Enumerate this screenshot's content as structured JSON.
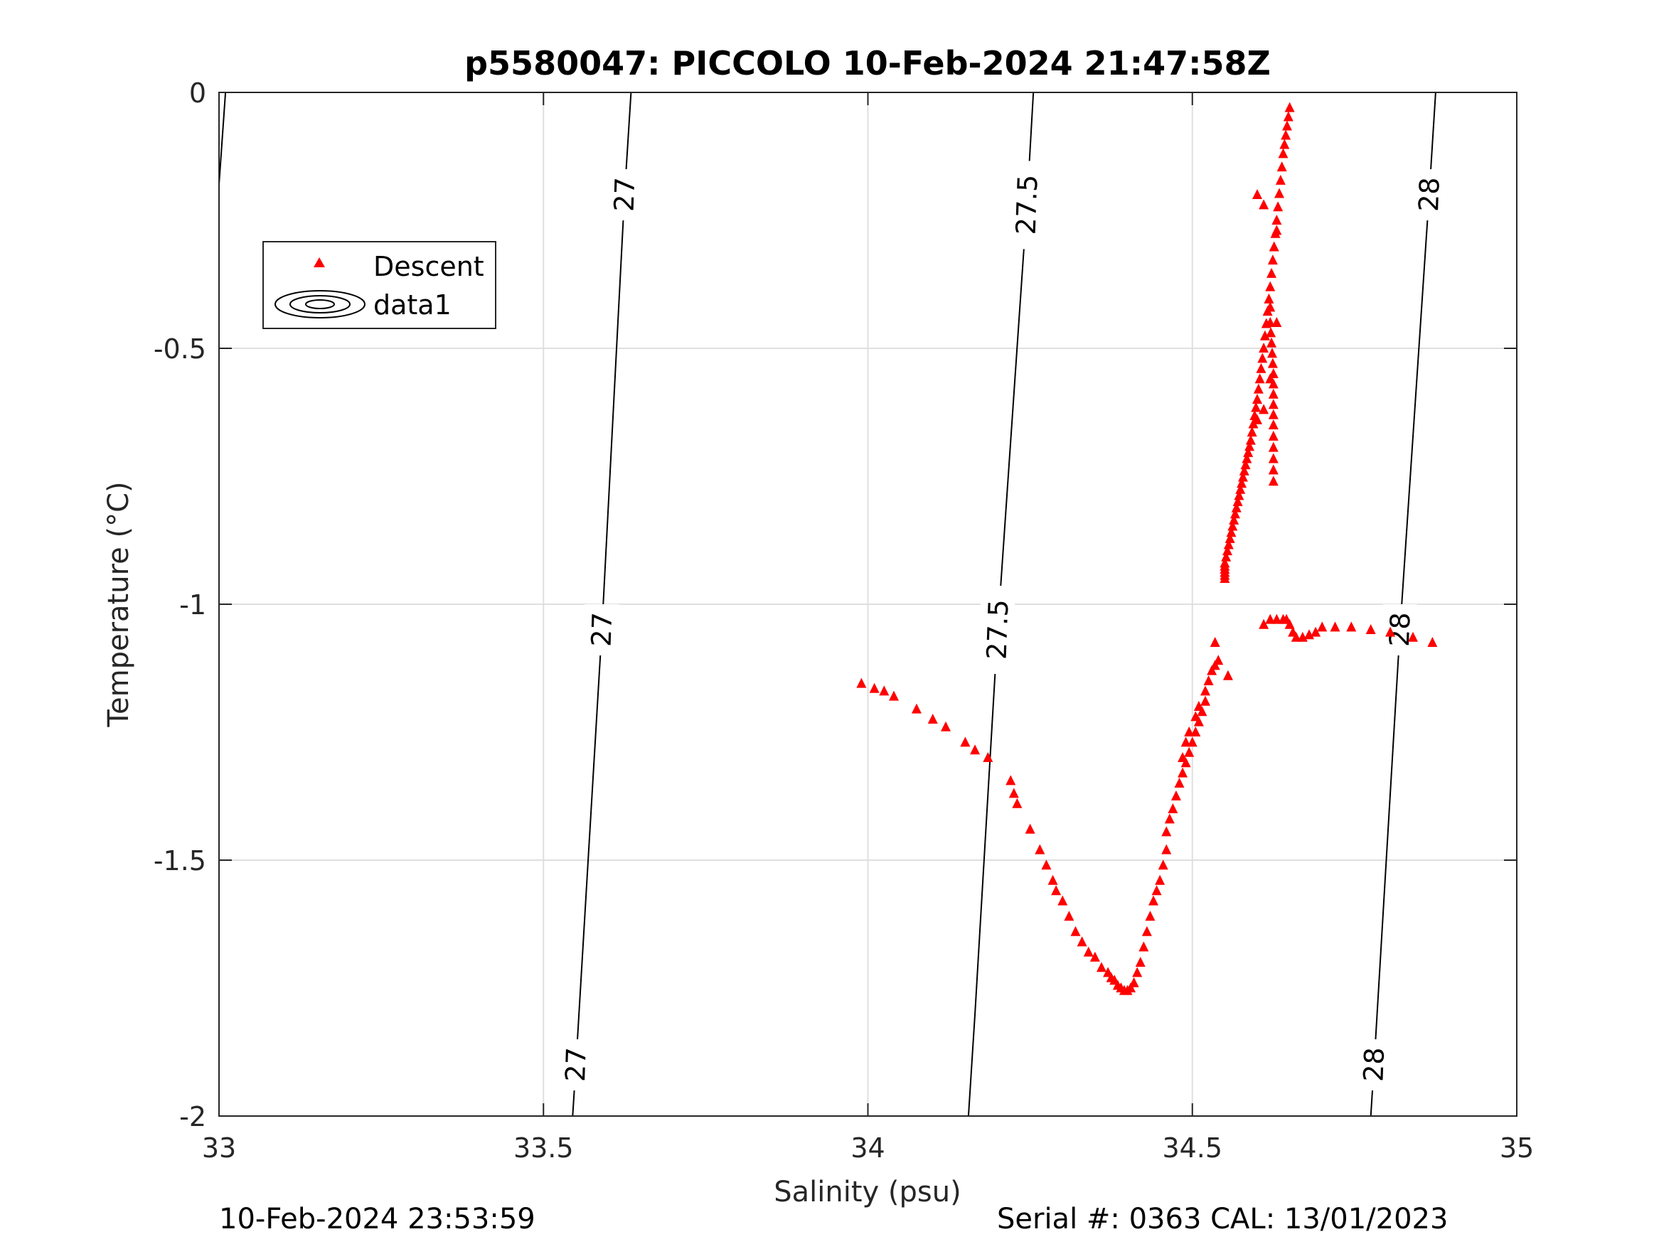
{
  "chart_data": {
    "type": "scatter",
    "title": "p5580047: PICCOLO 10-Feb-2024 21:47:58Z",
    "xlabel": "Salinity (psu)",
    "ylabel": "Temperature (°C)",
    "xlim": [
      33,
      35
    ],
    "ylim": [
      -2,
      0
    ],
    "xticks": [
      33,
      33.5,
      34,
      34.5,
      35
    ],
    "xtick_labels": [
      "33",
      "33.5",
      "34",
      "34.5",
      "35"
    ],
    "yticks": [
      0,
      -0.5,
      -1,
      -1.5,
      -2
    ],
    "ytick_labels": [
      "0",
      "-0.5",
      "-1",
      "-1.5",
      "-2"
    ],
    "grid": true,
    "legend": {
      "placement": "upper-left",
      "entries": [
        "Descent",
        "data1"
      ]
    },
    "colors": {
      "descent": "#ff0000",
      "contour": "#000000",
      "grid": "#dfdfdf"
    },
    "contours": [
      {
        "level": "27",
        "points": [
          [
            33.545,
            -2
          ],
          [
            33.55,
            -1.9
          ],
          [
            33.59,
            -1.05
          ],
          [
            33.625,
            -0.2
          ],
          [
            33.635,
            0
          ]
        ],
        "labels_at_T": [
          -1.9,
          -1.05,
          -0.2
        ]
      },
      {
        "level": "27.5",
        "points": [
          [
            34.155,
            -2
          ],
          [
            34.165,
            -1.8
          ],
          [
            34.2,
            -1.05
          ],
          [
            34.245,
            -0.22
          ],
          [
            34.255,
            0
          ]
        ],
        "labels_at_T": [
          -1.05,
          -0.22
        ]
      },
      {
        "level": "28",
        "points": [
          [
            34.775,
            -2
          ],
          [
            34.78,
            -1.9
          ],
          [
            34.82,
            -1.05
          ],
          [
            34.865,
            -0.2
          ],
          [
            34.875,
            0
          ]
        ],
        "labels_at_T": [
          -1.9,
          -1.05,
          -0.2
        ]
      },
      {
        "level": "",
        "points": [
          [
            33.0,
            -0.18
          ],
          [
            33.01,
            0
          ]
        ],
        "labels_at_T": []
      }
    ],
    "series": [
      {
        "name": "Descent",
        "marker": "triangle",
        "path": [
          [
            34.65,
            -0.03
          ],
          [
            34.64,
            -0.12
          ],
          [
            34.63,
            -0.25
          ],
          [
            34.62,
            -0.38
          ],
          [
            34.61,
            -0.5
          ],
          [
            34.6,
            -0.6
          ],
          [
            34.59,
            -0.68
          ],
          [
            34.58,
            -0.74
          ],
          [
            34.57,
            -0.8
          ],
          [
            34.56,
            -0.86
          ],
          [
            34.55,
            -0.92
          ],
          [
            34.55,
            -0.95
          ]
        ],
        "extra_path": [
          [
            34.62,
            -0.45
          ],
          [
            34.625,
            -0.55
          ],
          [
            34.625,
            -0.65
          ],
          [
            34.625,
            -0.76
          ]
        ],
        "points": [
          [
            34.6,
            -0.2
          ],
          [
            34.61,
            -0.22
          ],
          [
            34.63,
            -0.27
          ],
          [
            34.62,
            -0.42
          ],
          [
            34.63,
            -0.45
          ],
          [
            34.61,
            -0.62
          ],
          [
            34.62,
            -0.56
          ],
          [
            34.6,
            -0.64
          ],
          [
            34.61,
            -1.04
          ],
          [
            34.62,
            -1.03
          ],
          [
            34.63,
            -1.03
          ],
          [
            34.64,
            -1.03
          ],
          [
            34.645,
            -1.03
          ],
          [
            34.65,
            -1.04
          ],
          [
            34.655,
            -1.055
          ],
          [
            34.66,
            -1.065
          ],
          [
            34.67,
            -1.065
          ],
          [
            34.68,
            -1.06
          ],
          [
            34.69,
            -1.055
          ],
          [
            34.7,
            -1.045
          ],
          [
            34.72,
            -1.045
          ],
          [
            34.745,
            -1.045
          ],
          [
            34.775,
            -1.05
          ],
          [
            34.805,
            -1.055
          ],
          [
            34.84,
            -1.065
          ],
          [
            34.87,
            -1.075
          ],
          [
            33.99,
            -1.155
          ],
          [
            34.01,
            -1.165
          ],
          [
            34.025,
            -1.17
          ],
          [
            34.04,
            -1.18
          ],
          [
            34.075,
            -1.205
          ],
          [
            34.1,
            -1.225
          ],
          [
            34.12,
            -1.24
          ],
          [
            34.15,
            -1.27
          ],
          [
            34.165,
            -1.285
          ],
          [
            34.185,
            -1.3
          ],
          [
            34.22,
            -1.345
          ],
          [
            34.225,
            -1.37
          ],
          [
            34.23,
            -1.39
          ],
          [
            34.25,
            -1.44
          ],
          [
            34.265,
            -1.48
          ],
          [
            34.275,
            -1.51
          ],
          [
            34.285,
            -1.54
          ],
          [
            34.29,
            -1.56
          ],
          [
            34.3,
            -1.58
          ],
          [
            34.31,
            -1.61
          ],
          [
            34.32,
            -1.64
          ],
          [
            34.33,
            -1.66
          ],
          [
            34.34,
            -1.68
          ],
          [
            34.35,
            -1.69
          ],
          [
            34.36,
            -1.71
          ],
          [
            34.37,
            -1.72
          ],
          [
            34.375,
            -1.73
          ],
          [
            34.38,
            -1.735
          ],
          [
            34.385,
            -1.745
          ],
          [
            34.39,
            -1.75
          ],
          [
            34.395,
            -1.755
          ],
          [
            34.4,
            -1.755
          ],
          [
            34.405,
            -1.75
          ],
          [
            34.41,
            -1.74
          ],
          [
            34.415,
            -1.72
          ],
          [
            34.42,
            -1.7
          ],
          [
            34.425,
            -1.67
          ],
          [
            34.43,
            -1.64
          ],
          [
            34.435,
            -1.61
          ],
          [
            34.44,
            -1.58
          ],
          [
            34.445,
            -1.56
          ],
          [
            34.45,
            -1.54
          ],
          [
            34.455,
            -1.51
          ],
          [
            34.46,
            -1.48
          ],
          [
            34.46,
            -1.445
          ],
          [
            34.465,
            -1.42
          ],
          [
            34.47,
            -1.4
          ],
          [
            34.475,
            -1.375
          ],
          [
            34.48,
            -1.35
          ],
          [
            34.485,
            -1.33
          ],
          [
            34.49,
            -1.31
          ],
          [
            34.495,
            -1.29
          ],
          [
            34.5,
            -1.27
          ],
          [
            34.505,
            -1.25
          ],
          [
            34.51,
            -1.23
          ],
          [
            34.515,
            -1.21
          ],
          [
            34.52,
            -1.19
          ],
          [
            34.52,
            -1.17
          ],
          [
            34.525,
            -1.15
          ],
          [
            34.53,
            -1.13
          ],
          [
            34.535,
            -1.12
          ],
          [
            34.535,
            -1.075
          ],
          [
            34.54,
            -1.11
          ],
          [
            34.555,
            -1.14
          ],
          [
            34.51,
            -1.2
          ],
          [
            34.505,
            -1.22
          ],
          [
            34.495,
            -1.25
          ],
          [
            34.49,
            -1.27
          ],
          [
            34.485,
            -1.3
          ]
        ]
      }
    ]
  },
  "footer": {
    "timestamp": "10-Feb-2024 23:53:59",
    "serial": "Serial #: 0363  CAL: 13/01/2023"
  }
}
